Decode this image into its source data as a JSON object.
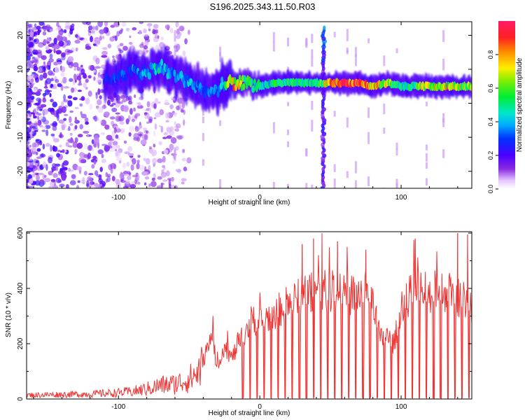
{
  "title": "S196.2025.343.11.50.R03",
  "colors": {
    "snr_line": "#ee3333",
    "axis": "#000000",
    "spec_bg": "#ffffff"
  },
  "chart_data": [
    {
      "type": "heatmap",
      "name": "spectrogram",
      "xlabel": "Height of straight line (km)",
      "ylabel": "Frequency (Hz)",
      "xlim": [
        -165,
        150
      ],
      "ylim": [
        -25,
        24
      ],
      "xticks": [
        -100,
        0,
        100
      ],
      "xtick_labels": [
        "-100",
        "0",
        "100"
      ],
      "yticks": [
        -20,
        -10,
        0,
        10,
        20
      ],
      "ytick_labels": [
        "-20",
        "-10",
        "0",
        "10",
        "20"
      ],
      "colorbar": {
        "label": "Normalized spectral amplitude",
        "range": [
          0,
          1
        ],
        "ticks": [
          0.0,
          0.2,
          0.4,
          0.6,
          0.8
        ],
        "tick_labels": [
          "0.0",
          "0.2",
          "0.4",
          "0.6",
          "0.8"
        ],
        "colormap": "rainbow"
      },
      "ridge": {
        "x": [
          -110,
          -100,
          -90,
          -80,
          -70,
          -60,
          -50,
          -40,
          -35,
          -30,
          -25,
          -20,
          -10,
          0,
          10,
          20,
          30,
          40,
          43,
          50,
          60,
          70,
          80,
          90,
          100,
          110,
          120,
          130,
          140,
          150
        ],
        "freq": [
          6,
          8,
          9,
          9,
          11,
          8,
          6,
          4,
          3,
          4,
          6,
          6,
          6,
          5,
          6,
          6,
          6,
          6,
          6,
          6,
          6,
          6,
          5,
          6,
          5,
          5,
          5,
          5,
          5,
          5
        ],
        "amp": [
          0.25,
          0.3,
          0.35,
          0.4,
          0.45,
          0.35,
          0.4,
          0.3,
          0.35,
          0.35,
          0.45,
          0.85,
          0.6,
          0.45,
          0.5,
          0.55,
          0.5,
          0.5,
          0.6,
          0.8,
          0.95,
          0.9,
          0.75,
          0.7,
          0.5,
          0.55,
          0.8,
          0.75,
          0.7,
          0.6
        ]
      },
      "vertical_streak": {
        "x": 45,
        "freq_range": [
          -25,
          23
        ]
      }
    },
    {
      "type": "line",
      "name": "snr",
      "xlabel": "Height of straight line (km)",
      "ylabel": "SNR (10 * v/v)",
      "xlim": [
        -165,
        150
      ],
      "ylim": [
        0,
        605
      ],
      "xticks": [
        -100,
        0,
        100
      ],
      "xtick_labels": [
        "-100",
        "0",
        "100"
      ],
      "yticks": [
        0,
        200,
        400,
        600
      ],
      "ytick_labels": [
        "0",
        "200",
        "400",
        "600"
      ],
      "envelope": {
        "x": [
          -165,
          -140,
          -120,
          -100,
          -90,
          -80,
          -70,
          -60,
          -50,
          -45,
          -40,
          -35,
          -30,
          -25,
          -20,
          -15,
          -10,
          -5,
          0,
          10,
          20,
          30,
          40,
          50,
          60,
          70,
          80,
          85,
          90,
          95,
          100,
          110,
          120,
          130,
          140,
          150
        ],
        "y": [
          15,
          18,
          20,
          25,
          30,
          40,
          55,
          60,
          80,
          100,
          140,
          250,
          120,
          200,
          150,
          200,
          250,
          300,
          280,
          320,
          350,
          380,
          390,
          400,
          380,
          390,
          390,
          220,
          230,
          200,
          350,
          400,
          390,
          400,
          380,
          350
        ]
      },
      "dropouts_x": [
        -12,
        -7,
        -2,
        3,
        8,
        13,
        18,
        23,
        28,
        33,
        38,
        43,
        48,
        53,
        58,
        63,
        68,
        73,
        78,
        83,
        88,
        93,
        98,
        103,
        108,
        113,
        118,
        123,
        128,
        133,
        138,
        143,
        148
      ],
      "spikes": [
        {
          "x": 30,
          "y": 560
        },
        {
          "x": 38,
          "y": 580
        },
        {
          "x": 44,
          "y": 600
        },
        {
          "x": 55,
          "y": 570
        },
        {
          "x": 75,
          "y": 540
        },
        {
          "x": 110,
          "y": 580
        },
        {
          "x": 140,
          "y": 600
        },
        {
          "x": 147,
          "y": 595
        }
      ]
    }
  ]
}
